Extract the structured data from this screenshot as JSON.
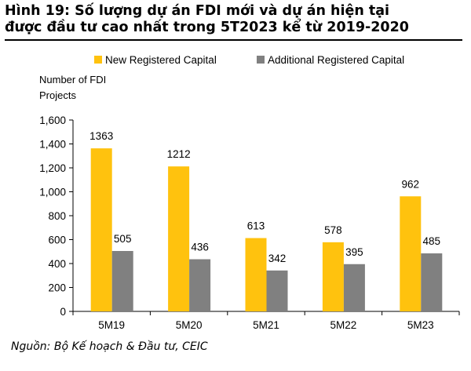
{
  "page": {
    "title_line1": "Hình 19: Số lượng dự án FDI mới và dự án hiện tại",
    "title_line2": "được đầu tư cao nhất trong 5T2023 kể từ 2019-2020",
    "source": "Nguồn: Bộ Kế hoạch & Đầu tư, CEIC"
  },
  "chart_data": {
    "type": "bar",
    "title": "",
    "ylabel_line1": "Number of FDI",
    "ylabel_line2": "Projects",
    "xlabel": "",
    "categories": [
      "5M19",
      "5M20",
      "5M21",
      "5M22",
      "5M23"
    ],
    "series": [
      {
        "name": "New Registered Capital",
        "color": "#ffc20e",
        "values": [
          1363,
          1212,
          613,
          578,
          962
        ]
      },
      {
        "name": "Additional Registered Capital",
        "color": "#808080",
        "values": [
          505,
          436,
          342,
          395,
          485
        ]
      }
    ],
    "ylim": [
      0,
      1600
    ],
    "yticks": [
      0,
      200,
      400,
      600,
      800,
      1000,
      1200,
      1400,
      1600
    ],
    "ytick_labels": [
      "0",
      "200",
      "400",
      "600",
      "800",
      "1,000",
      "1,200",
      "1,400",
      "1,600"
    ],
    "grid": false,
    "legend_position": "top",
    "data_labels": true
  }
}
